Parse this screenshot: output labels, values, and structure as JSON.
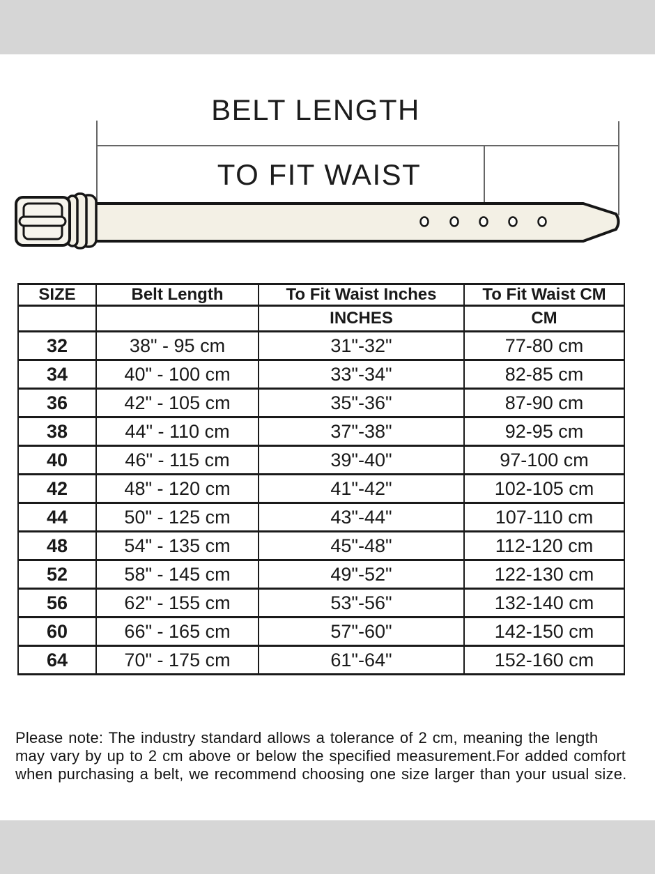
{
  "diagram": {
    "belt_length_label": "BELT LENGTH",
    "to_fit_waist_label": "TO FIT WAIST"
  },
  "chart_data": {
    "type": "table",
    "title": "BELT LENGTH / TO FIT WAIST size chart",
    "columns": [
      "SIZE",
      "Belt Length",
      "To Fit Waist Inches",
      "To Fit Waist CM"
    ],
    "unit_row": [
      "",
      "",
      "INCHES",
      "CM"
    ],
    "rows": [
      [
        "32",
        "38\" - 95 cm",
        "31\"-32\"",
        "77-80 cm"
      ],
      [
        "34",
        "40\" - 100 cm",
        "33\"-34\"",
        "82-85 cm"
      ],
      [
        "36",
        "42\" - 105 cm",
        "35\"-36\"",
        "87-90 cm"
      ],
      [
        "38",
        "44\" - 110 cm",
        "37\"-38\"",
        "92-95 cm"
      ],
      [
        "40",
        "46\" - 115 cm",
        "39\"-40\"",
        "97-100 cm"
      ],
      [
        "42",
        "48\" - 120 cm",
        "41\"-42\"",
        "102-105 cm"
      ],
      [
        "44",
        "50\" - 125 cm",
        "43\"-44\"",
        "107-110 cm"
      ],
      [
        "48",
        "54\" - 135 cm",
        "45\"-48\"",
        "112-120 cm"
      ],
      [
        "52",
        "58\" - 145 cm",
        "49\"-52\"",
        "122-130 cm"
      ],
      [
        "56",
        "62\" - 155 cm",
        "53\"-56\"",
        "132-140 cm"
      ],
      [
        "60",
        "66\" - 165 cm",
        "57\"-60\"",
        "142-150 cm"
      ],
      [
        "64",
        "70\" - 175 cm",
        "61\"-64\"",
        "152-160 cm"
      ]
    ]
  },
  "note": {
    "text": "Please note: The industry standard allows a tolerance of 2 cm, meaning the length\nmay vary by up to 2 cm above or below the specified measurement.For added comfort\nwhen purchasing a belt, we recommend choosing one size larger than your usual size."
  },
  "colors": {
    "band_gray": "#d6d6d6",
    "line_dark": "#1a1a1a",
    "measure_line_gray": "#666666",
    "belt_fill_cream": "#f3f0e5"
  }
}
